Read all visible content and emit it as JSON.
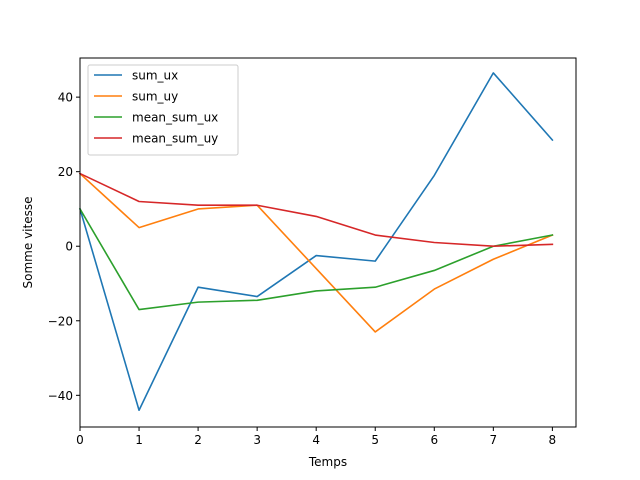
{
  "chart_data": {
    "type": "line",
    "title": "",
    "xlabel": "Temps",
    "ylabel": "Somme vitesse",
    "xlim": [
      0,
      8.4
    ],
    "ylim": [
      -48.5,
      50.5
    ],
    "x": [
      0,
      1,
      2,
      3,
      4,
      5,
      6,
      7,
      8
    ],
    "xticks": [
      0,
      1,
      2,
      3,
      4,
      5,
      6,
      7,
      8
    ],
    "yticks": [
      -40,
      -20,
      0,
      20,
      40
    ],
    "ytick_labels": [
      "−40",
      "−20",
      "0",
      "20",
      "40"
    ],
    "grid": false,
    "legend_position": "top-left",
    "series": [
      {
        "name": "sum_ux",
        "color": "#1f77b4",
        "values": [
          10.0,
          -44.0,
          -11.0,
          -13.5,
          -2.5,
          -4.0,
          19.0,
          46.5,
          28.5
        ]
      },
      {
        "name": "sum_uy",
        "color": "#ff7f0e",
        "values": [
          19.5,
          5.0,
          10.0,
          11.0,
          -6.0,
          -23.0,
          -11.5,
          -3.5,
          3.0
        ]
      },
      {
        "name": "mean_sum_ux",
        "color": "#2ca02c",
        "values": [
          10.0,
          -17.0,
          -15.0,
          -14.5,
          -12.0,
          -11.0,
          -6.5,
          0.0,
          3.0
        ]
      },
      {
        "name": "mean_sum_uy",
        "color": "#d62728",
        "values": [
          19.5,
          12.0,
          11.0,
          11.0,
          8.0,
          3.0,
          1.0,
          0.0,
          0.5
        ]
      }
    ]
  }
}
